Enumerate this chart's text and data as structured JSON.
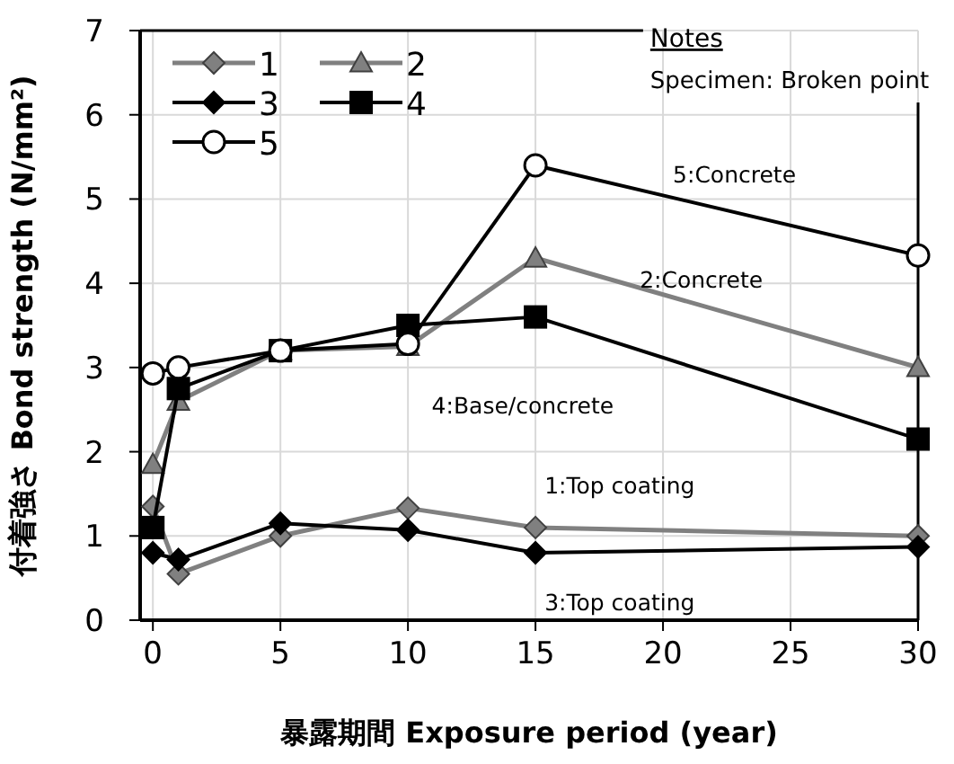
{
  "chart_data": {
    "type": "line",
    "xlabel": "暴露期間 Exposure period (year)",
    "ylabel": "付着強さ Bond strength (N/mm²)",
    "x": [
      0,
      1,
      5,
      10,
      15,
      30
    ],
    "xlim": [
      -0.5,
      30
    ],
    "xticks": [
      0,
      5,
      10,
      15,
      20,
      25,
      30
    ],
    "ylim": [
      0,
      7
    ],
    "yticks": [
      0,
      1,
      2,
      3,
      4,
      5,
      6,
      7
    ],
    "grid": true,
    "legend": "top left",
    "series": [
      {
        "name": "1",
        "color": "#808080",
        "marker": "diamond",
        "values": [
          1.35,
          0.55,
          1.0,
          1.33,
          1.1,
          1.0
        ]
      },
      {
        "name": "2",
        "color": "#808080",
        "marker": "triangle",
        "values": [
          1.85,
          2.6,
          3.2,
          3.25,
          4.3,
          3.0
        ]
      },
      {
        "name": "3",
        "color": "#000000",
        "marker": "diamond",
        "values": [
          0.8,
          0.72,
          1.15,
          1.07,
          0.8,
          0.87
        ]
      },
      {
        "name": "4",
        "color": "#000000",
        "marker": "square",
        "values": [
          1.1,
          2.75,
          3.2,
          3.5,
          3.6,
          2.15
        ]
      },
      {
        "name": "5",
        "color": "#000000",
        "marker": "circle",
        "values": [
          2.93,
          3.0,
          3.2,
          3.28,
          5.4,
          4.33
        ]
      }
    ],
    "annotations": [
      "Notes",
      "Specimen: Broken point",
      "5:Concrete",
      "2:Concrete",
      "4:Base/concrete",
      "1:Top coating",
      "3:Top coating"
    ]
  }
}
